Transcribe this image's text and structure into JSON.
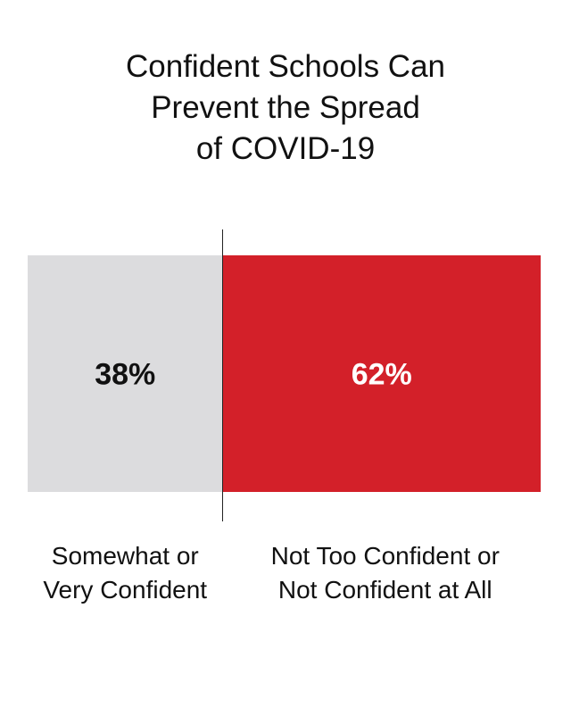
{
  "chart_data": {
    "type": "bar",
    "title_lines": [
      "Confident Schools Can",
      "Prevent the Spread",
      "of COVID-19"
    ],
    "categories": [
      [
        "Somewhat or",
        "Very Confident"
      ],
      [
        "Not Too Confident or",
        "Not Confident at All"
      ]
    ],
    "values": [
      38,
      62
    ],
    "value_labels": [
      "38%",
      "62%"
    ],
    "stacked": true,
    "orientation": "horizontal",
    "colors": [
      "#dcdcde",
      "#d32029"
    ],
    "label_colors": [
      "#111111",
      "#ffffff"
    ],
    "divider_color": "#222222"
  }
}
